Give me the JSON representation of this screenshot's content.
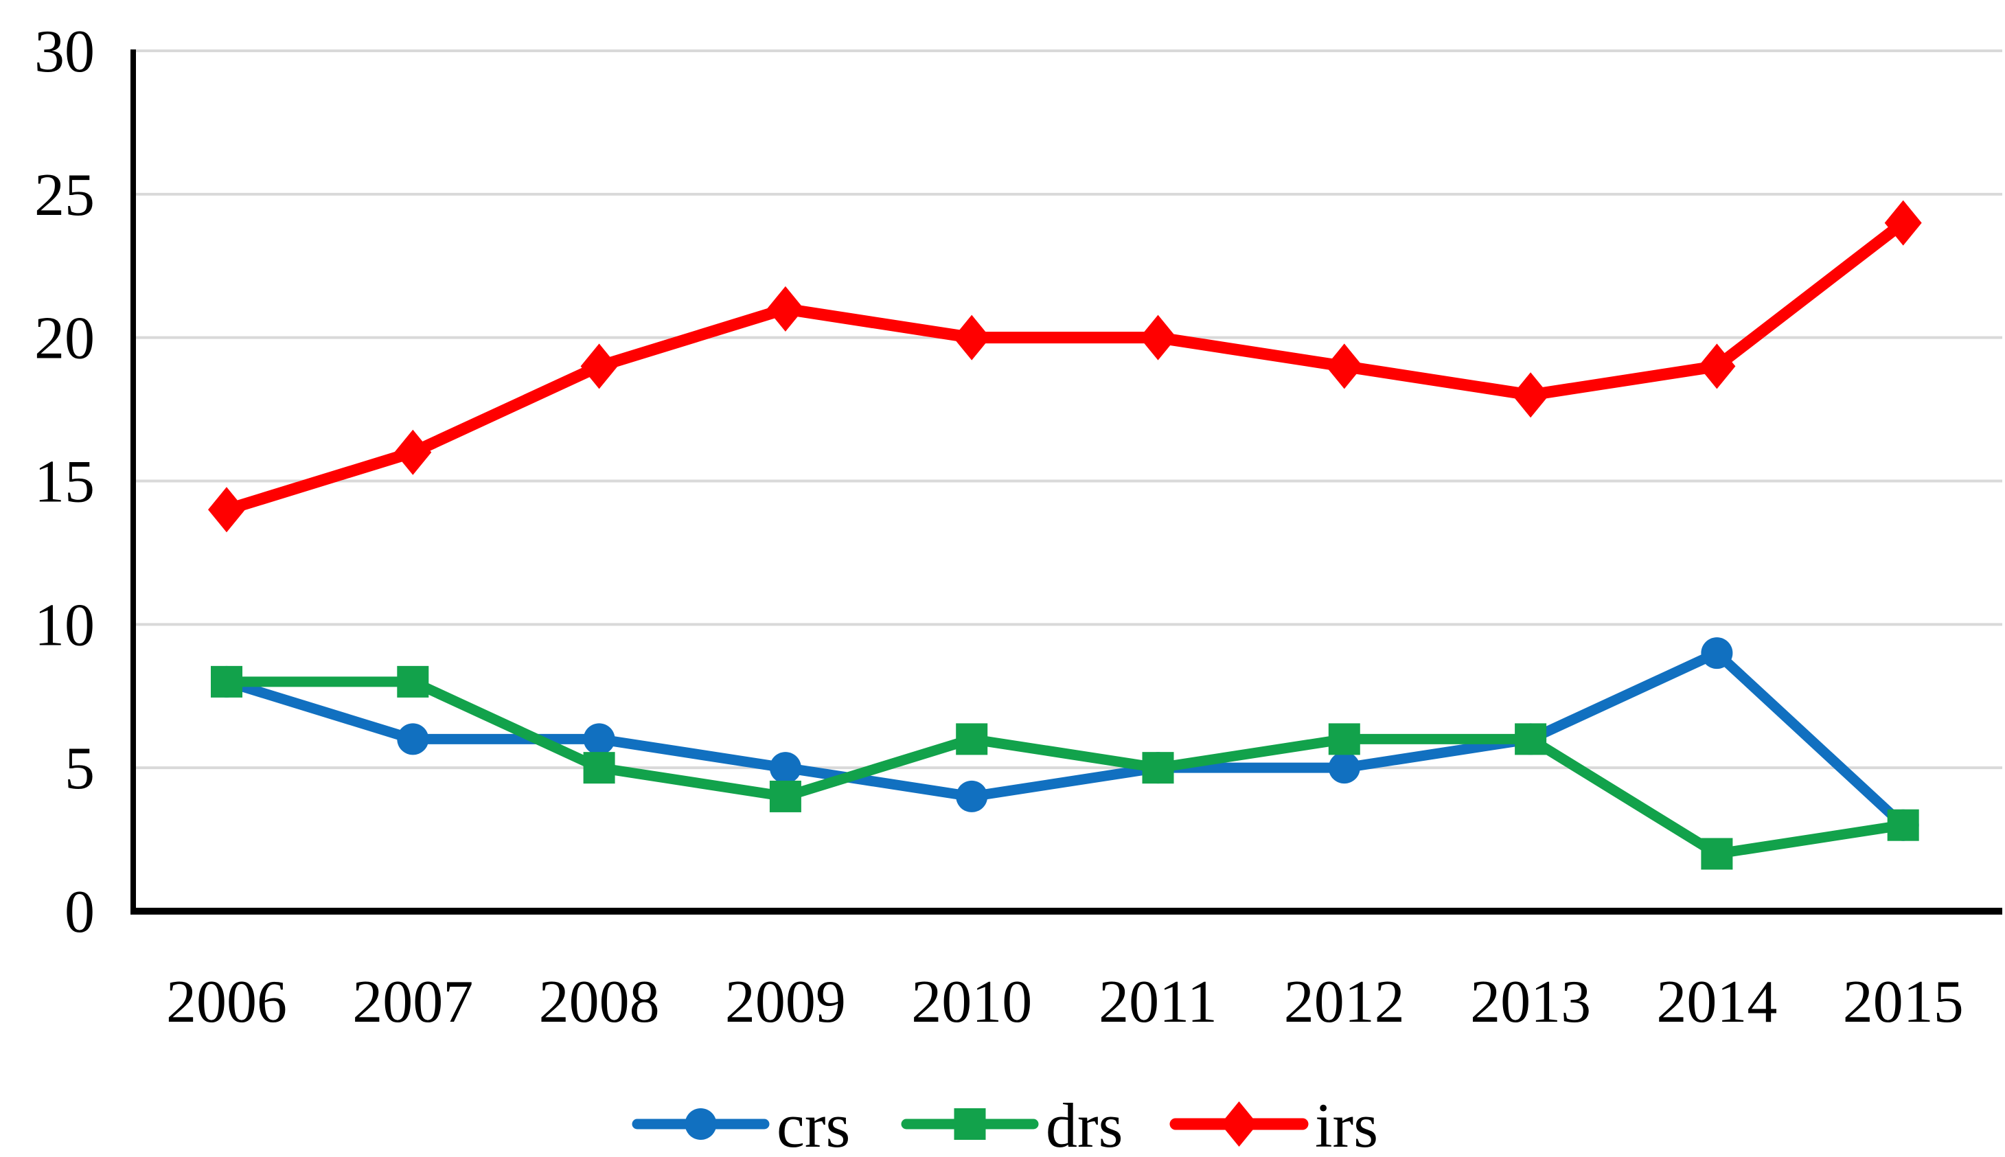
{
  "chart_data": {
    "type": "line",
    "title": "",
    "xlabel": "",
    "ylabel": "",
    "x_categories": [
      "2006",
      "2007",
      "2008",
      "2009",
      "2010",
      "2011",
      "2012",
      "2013",
      "2014",
      "2015"
    ],
    "y_ticks": [
      "0",
      "5",
      "10",
      "15",
      "20",
      "25",
      "30"
    ],
    "ylim": [
      0,
      30
    ],
    "grid": "horizontal-only",
    "legend_position": "bottom-center",
    "series": [
      {
        "name": "crs",
        "marker": "circle",
        "color": "#1170C0",
        "values": [
          8,
          6,
          6,
          5,
          4,
          5,
          5,
          6,
          9,
          3
        ]
      },
      {
        "name": "drs",
        "marker": "square",
        "color": "#12A24B",
        "values": [
          8,
          8,
          5,
          4,
          6,
          5,
          6,
          6,
          2,
          3
        ]
      },
      {
        "name": "irs",
        "marker": "diamond",
        "color": "#FF0000",
        "values": [
          14,
          16,
          19,
          21,
          20,
          20,
          19,
          18,
          19,
          24
        ]
      }
    ],
    "colors": {
      "background": "#FFFFFF",
      "gridline": "#D9D9D9",
      "axis": "#000000",
      "text": "#000000"
    }
  }
}
